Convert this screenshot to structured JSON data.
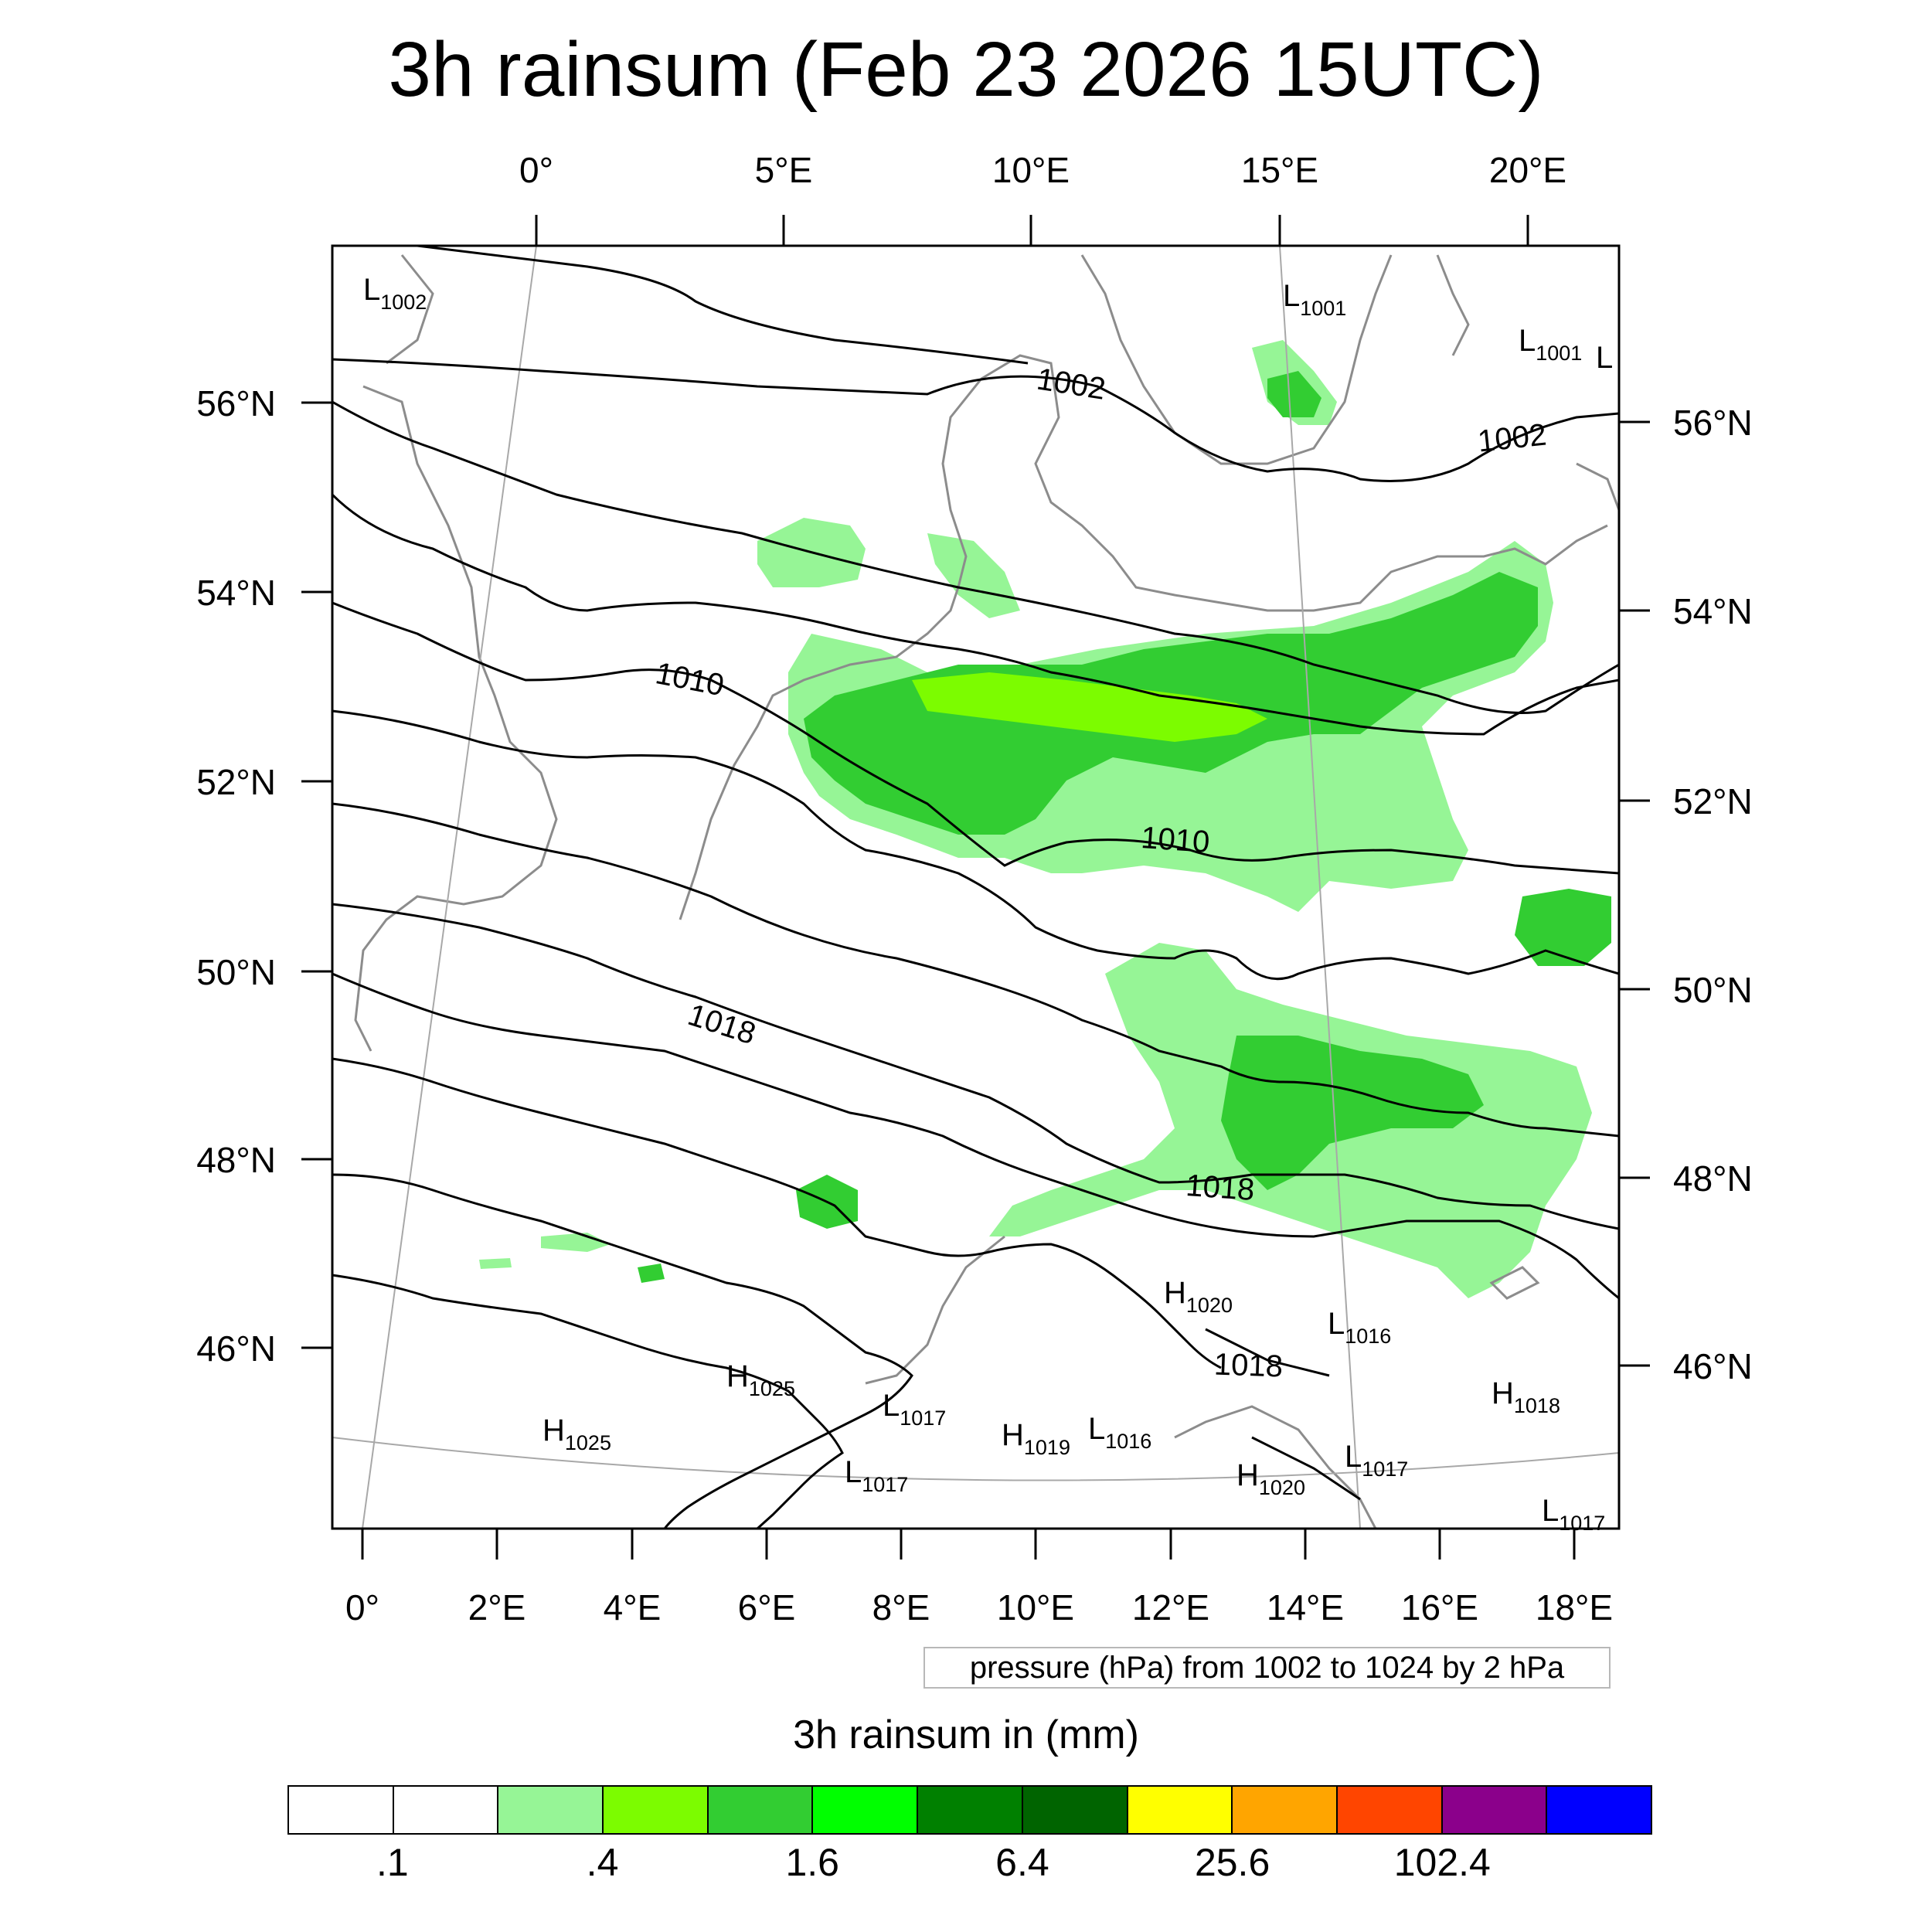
{
  "title": "3h rainsum (Feb 23 2026 15UTC)",
  "map": {
    "top_lon_labels": [
      "0°",
      "5°E",
      "10°E",
      "15°E",
      "20°E"
    ],
    "bottom_lon_labels": [
      "0°",
      "2°E",
      "4°E",
      "6°E",
      "8°E",
      "10°E",
      "12°E",
      "14°E",
      "16°E",
      "18°E"
    ],
    "left_lat_labels": [
      "56°N",
      "54°N",
      "52°N",
      "50°N",
      "48°N",
      "46°N"
    ],
    "right_lat_labels": [
      "56°N",
      "54°N",
      "52°N",
      "50°N",
      "48°N",
      "46°N"
    ],
    "contour_labels": [
      "1002",
      "1002",
      "1010",
      "1010",
      "1018",
      "1018",
      "1018"
    ],
    "pressure_centers": [
      {
        "type": "L",
        "value": "1002"
      },
      {
        "type": "L",
        "value": "1001"
      },
      {
        "type": "L",
        "value": "1001"
      },
      {
        "type": "L",
        "value": ""
      },
      {
        "type": "H",
        "value": "1020"
      },
      {
        "type": "L",
        "value": "1016"
      },
      {
        "type": "H",
        "value": "1025"
      },
      {
        "type": "L",
        "value": "1017"
      },
      {
        "type": "H",
        "value": "1019"
      },
      {
        "type": "L",
        "value": "1016"
      },
      {
        "type": "H",
        "value": "1025"
      },
      {
        "type": "L",
        "value": "1017"
      },
      {
        "type": "H",
        "value": "1020"
      },
      {
        "type": "L",
        "value": "1017"
      },
      {
        "type": "H",
        "value": "1018"
      },
      {
        "type": "L",
        "value": "1017"
      }
    ]
  },
  "pressure_note": "pressure (hPa) from 1002 to 1024 by 2 hPa",
  "legend": {
    "title": "3h rainsum in (mm)",
    "colors": [
      "#ffffff",
      "#ffffff",
      "#96f596",
      "#7cfc00",
      "#32cd32",
      "#00ff00",
      "#008000",
      "#006400",
      "#ffff00",
      "#ffa500",
      "#ff4500",
      "#8b008b",
      "#0000ff"
    ],
    "labels": [
      ".1",
      ".4",
      "1.6",
      "6.4",
      "25.6",
      "102.4"
    ]
  }
}
